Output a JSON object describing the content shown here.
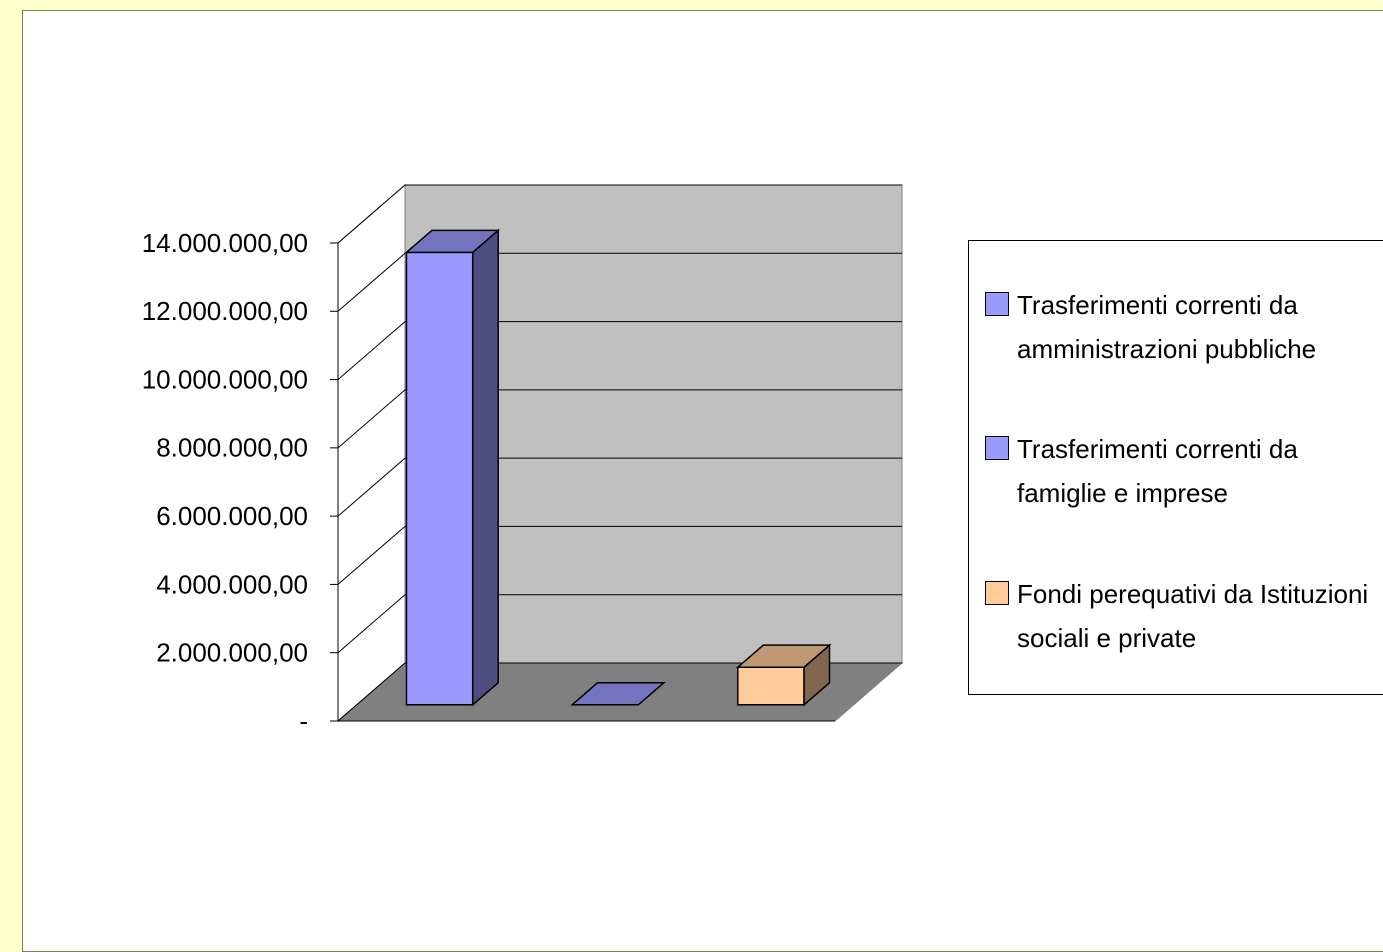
{
  "chart_data": {
    "type": "bar3d",
    "series": [
      {
        "name": "Trasferimenti correnti da amministrazioni pubbliche",
        "color": "#9999ff",
        "values": [
          13250000
        ]
      },
      {
        "name": "Trasferimenti correnti da famiglie e imprese",
        "color": "#9999ff",
        "values": [
          0
        ]
      },
      {
        "name": "Fondi perequativi da Istituzioni sociali e private",
        "color": "#ffcc99",
        "values": [
          1100000
        ]
      }
    ],
    "ylim": [
      0,
      14000000
    ],
    "yticks": [
      {
        "value": 0,
        "label": "-"
      },
      {
        "value": 2000000,
        "label": "2.000.000,00"
      },
      {
        "value": 4000000,
        "label": "4.000.000,00"
      },
      {
        "value": 6000000,
        "label": "6.000.000,00"
      },
      {
        "value": 8000000,
        "label": "8.000.000,00"
      },
      {
        "value": 10000000,
        "label": "10.000.000,00"
      },
      {
        "value": 12000000,
        "label": "12.000.000,00"
      },
      {
        "value": 14000000,
        "label": "14.000.000,00"
      }
    ],
    "grid": true,
    "legend": "right"
  }
}
